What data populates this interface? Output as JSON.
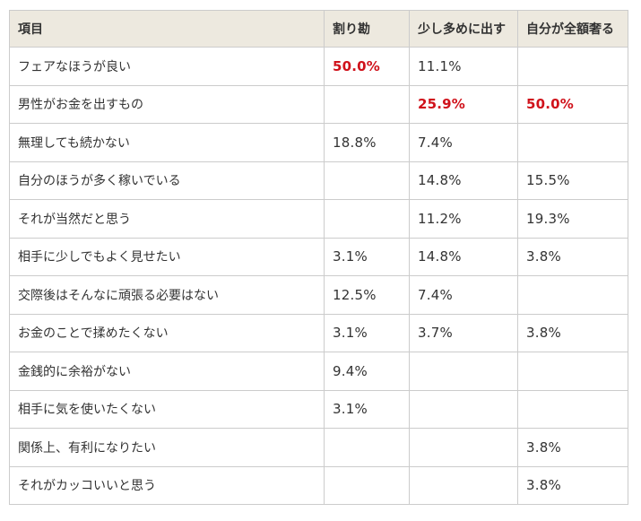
{
  "table": {
    "headers": [
      "項目",
      "割り勘",
      "少し多めに出す",
      "自分が全額奢る"
    ],
    "rows": [
      {
        "item": "フェアなほうが良い",
        "warikan": "50.0%",
        "sukoshi": "11.1%",
        "zengaku": ""
      },
      {
        "item": "男性がお金を出すもの",
        "warikan": "",
        "sukoshi": "25.9%",
        "zengaku": "50.0%"
      },
      {
        "item": "無理しても続かない",
        "warikan": "18.8%",
        "sukoshi": "7.4%",
        "zengaku": ""
      },
      {
        "item": "自分のほうが多く稼いでいる",
        "warikan": "",
        "sukoshi": "14.8%",
        "zengaku": "15.5%"
      },
      {
        "item": "それが当然だと思う",
        "warikan": "",
        "sukoshi": "11.2%",
        "zengaku": "19.3%"
      },
      {
        "item": "相手に少しでもよく見せたい",
        "warikan": "3.1%",
        "sukoshi": "14.8%",
        "zengaku": "3.8%"
      },
      {
        "item": "交際後はそんなに頑張る必要はない",
        "warikan": "12.5%",
        "sukoshi": "7.4%",
        "zengaku": ""
      },
      {
        "item": "お金のことで揉めたくない",
        "warikan": "3.1%",
        "sukoshi": "3.7%",
        "zengaku": "3.8%"
      },
      {
        "item": "金銭的に余裕がない",
        "warikan": "9.4%",
        "sukoshi": "",
        "zengaku": ""
      },
      {
        "item": "相手に気を使いたくない",
        "warikan": "3.1%",
        "sukoshi": "",
        "zengaku": ""
      },
      {
        "item": "関係上、有利になりたい",
        "warikan": "",
        "sukoshi": "",
        "zengaku": "3.8%"
      },
      {
        "item": "それがカッコいいと思う",
        "warikan": "",
        "sukoshi": "",
        "zengaku": "3.8%"
      }
    ]
  },
  "colors": {
    "header_bg": "#ede9df",
    "border": "#cccccc",
    "highlight": "#d0121b",
    "text": "#333333"
  }
}
